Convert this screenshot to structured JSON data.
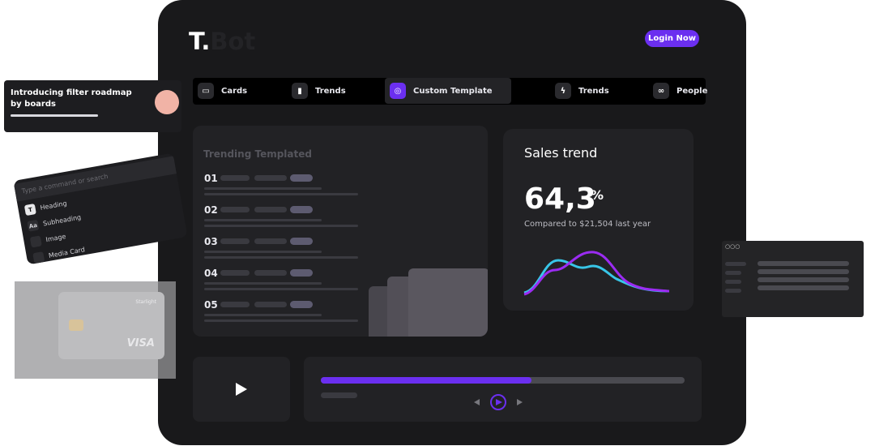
{
  "header": {
    "logo_letter": "T.",
    "logo_word": "Bot",
    "login": "Login Now"
  },
  "nav": [
    "Cards",
    "Trends",
    "Custom Template",
    "Trends",
    "People"
  ],
  "notification": {
    "text": "Introducing filter roadmap by boards"
  },
  "command_palette": {
    "placeholder": "Type a command or search",
    "items": [
      {
        "icon": "T",
        "label": "Heading"
      },
      {
        "icon": "Aa",
        "label": "Subheading"
      },
      {
        "label": "Image"
      },
      {
        "label": "Media Card"
      }
    ]
  },
  "card": {
    "brand": "Starlight",
    "network": "VISA"
  },
  "trending": {
    "title": "Trending Templated",
    "rows": [
      "01",
      "02",
      "03",
      "04",
      "05"
    ]
  },
  "sales": {
    "title": "Sales trend",
    "value": "64,3",
    "unit": "%",
    "caption": "Compared to $21,504 last year"
  }
}
